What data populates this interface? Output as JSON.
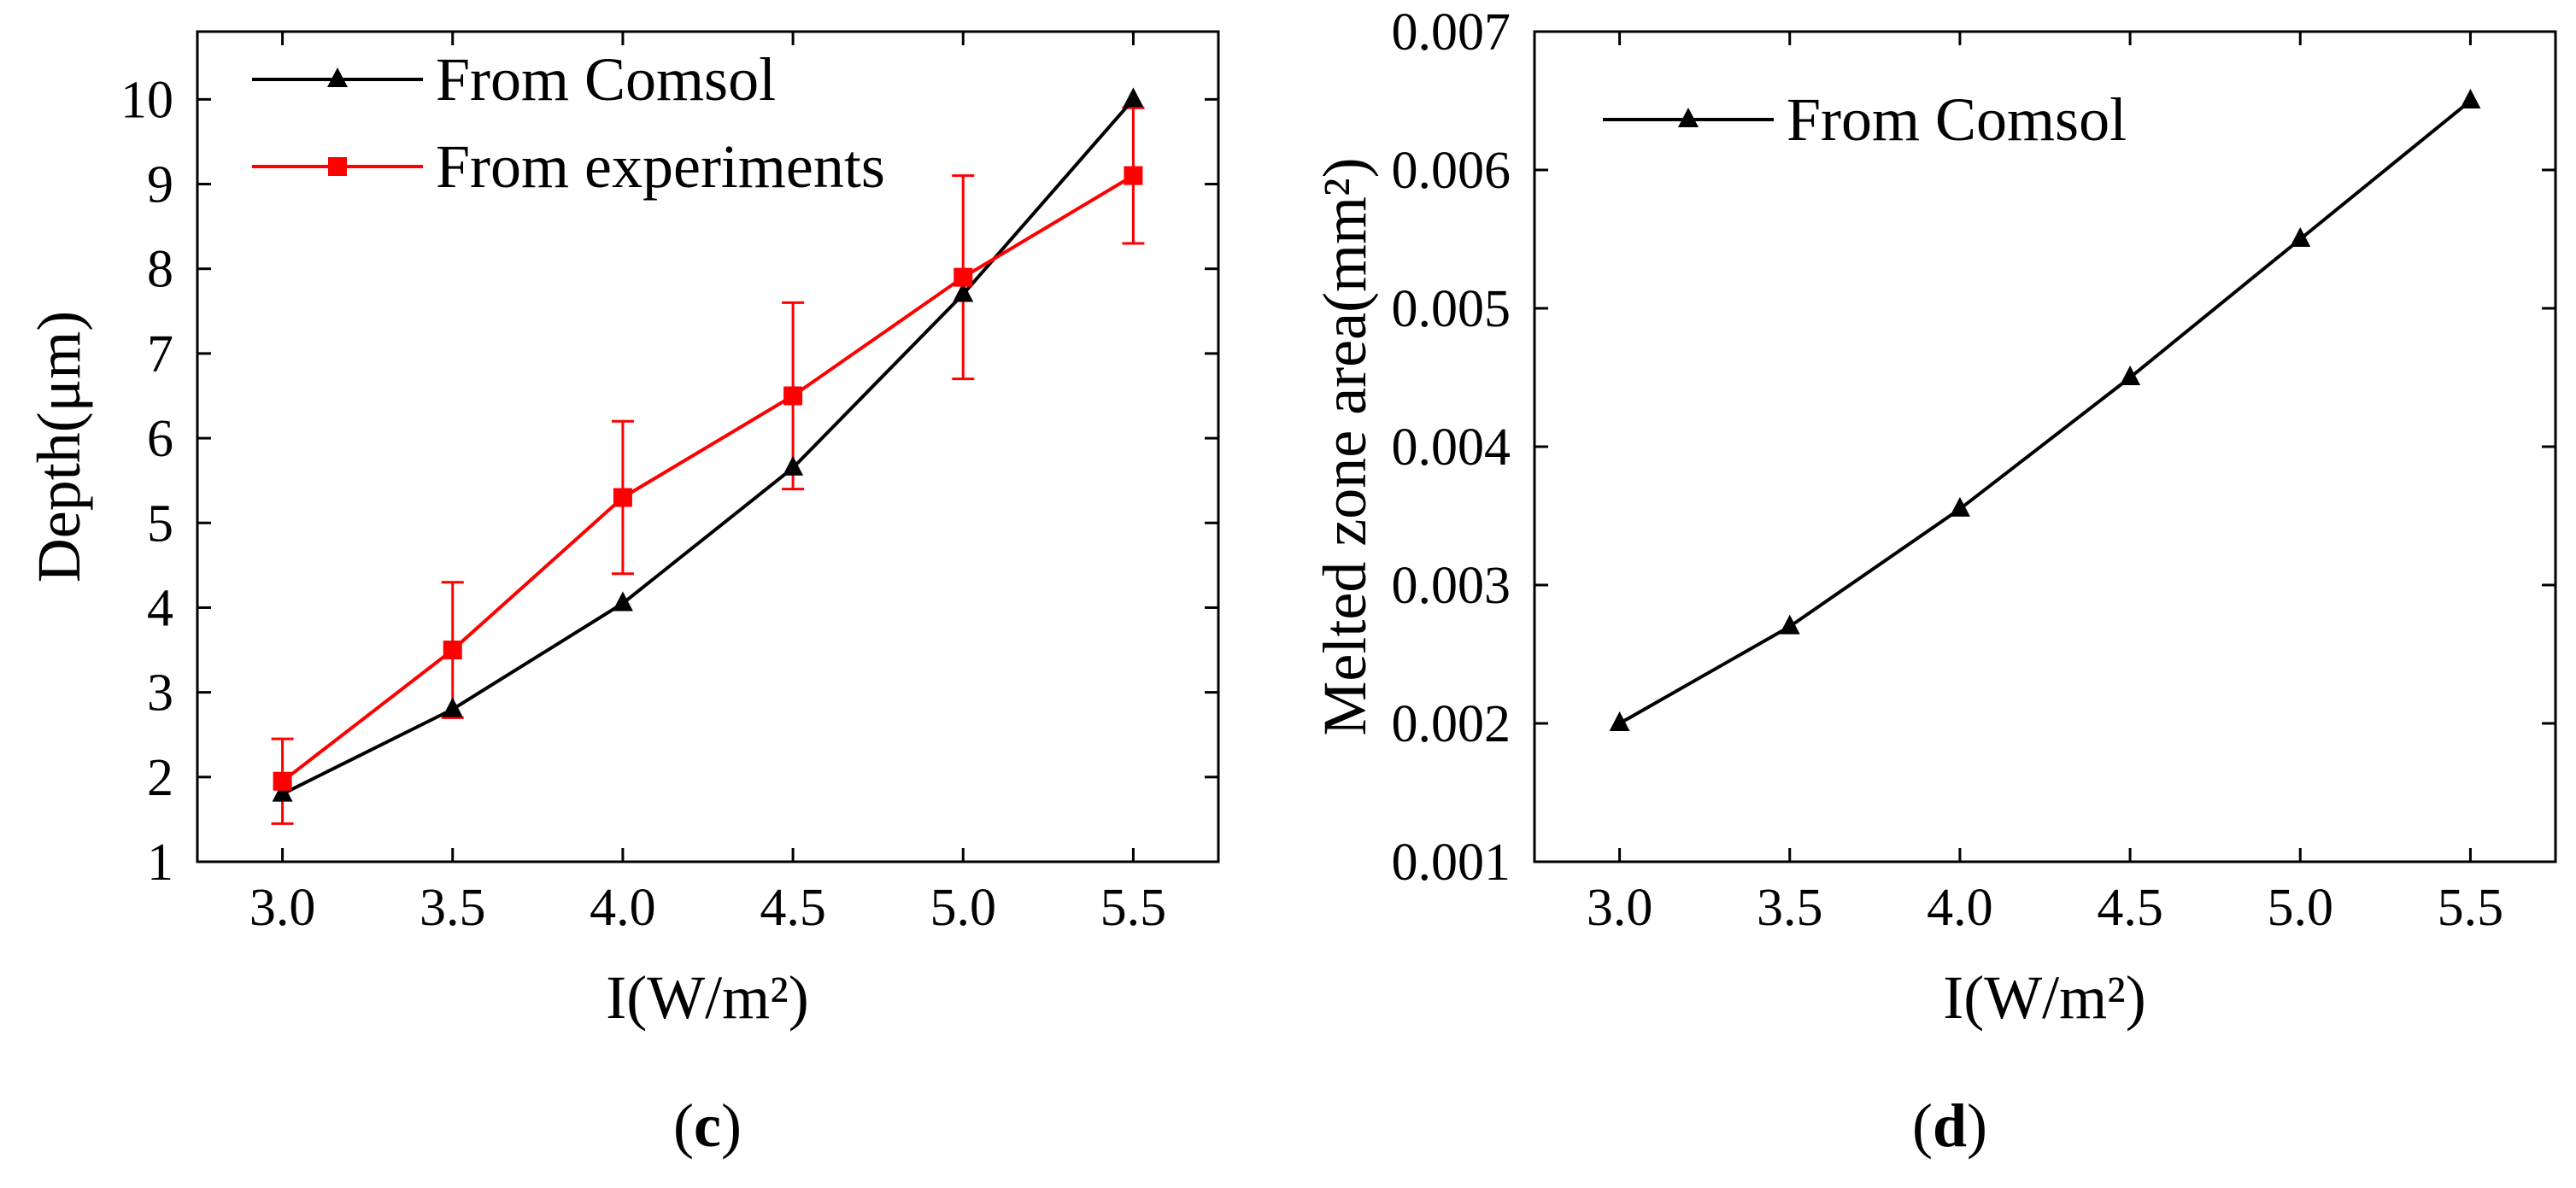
{
  "chart_data": [
    {
      "type": "line",
      "panel_label": "c",
      "xlabel": "I(W/m²)",
      "ylabel": "Depth(μm)",
      "xlim": [
        2.75,
        5.75
      ],
      "ylim": [
        1,
        10.8
      ],
      "xticks": [
        3.0,
        3.5,
        4.0,
        4.5,
        5.0,
        5.5
      ],
      "xtick_labels": [
        "3.0",
        "3.5",
        "4.0",
        "4.5",
        "5.0",
        "5.5"
      ],
      "yticks": [
        1,
        2,
        3,
        4,
        5,
        6,
        7,
        8,
        9,
        10
      ],
      "ytick_labels": [
        "1",
        "2",
        "3",
        "4",
        "5",
        "6",
        "7",
        "8",
        "9",
        "10"
      ],
      "legend_position": "top-left",
      "x": [
        3.0,
        3.5,
        4.0,
        4.5,
        5.0,
        5.5
      ],
      "series": [
        {
          "name": "From Comsol",
          "color": "#000000",
          "marker": "triangle",
          "values": [
            1.8,
            2.8,
            4.05,
            5.65,
            7.7,
            10.0
          ]
        },
        {
          "name": "From experiments",
          "color": "#ff0000",
          "marker": "square",
          "values": [
            1.95,
            3.5,
            5.3,
            6.5,
            7.9,
            9.1
          ],
          "error_low": [
            1.45,
            2.7,
            4.4,
            5.4,
            6.7,
            8.3
          ],
          "error_high": [
            2.45,
            4.3,
            6.2,
            7.6,
            9.1,
            9.9
          ]
        }
      ]
    },
    {
      "type": "line",
      "panel_label": "d",
      "xlabel": "I(W/m²)",
      "ylabel": "Melted zone area(mm²)",
      "xlim": [
        2.75,
        5.75
      ],
      "ylim": [
        0.001,
        0.007
      ],
      "xticks": [
        3.0,
        3.5,
        4.0,
        4.5,
        5.0,
        5.5
      ],
      "xtick_labels": [
        "3.0",
        "3.5",
        "4.0",
        "4.5",
        "5.0",
        "5.5"
      ],
      "yticks": [
        0.001,
        0.002,
        0.003,
        0.004,
        0.005,
        0.006,
        0.007
      ],
      "ytick_labels": [
        "0.001",
        "0.002",
        "0.003",
        "0.004",
        "0.005",
        "0.006",
        "0.007"
      ],
      "legend_position": "top-left",
      "x": [
        3.0,
        3.5,
        4.0,
        4.5,
        5.0,
        5.5
      ],
      "series": [
        {
          "name": "From Comsol",
          "color": "#000000",
          "marker": "triangle",
          "values": [
            0.002,
            0.0027,
            0.00355,
            0.0045,
            0.0055,
            0.0065
          ]
        }
      ]
    }
  ]
}
